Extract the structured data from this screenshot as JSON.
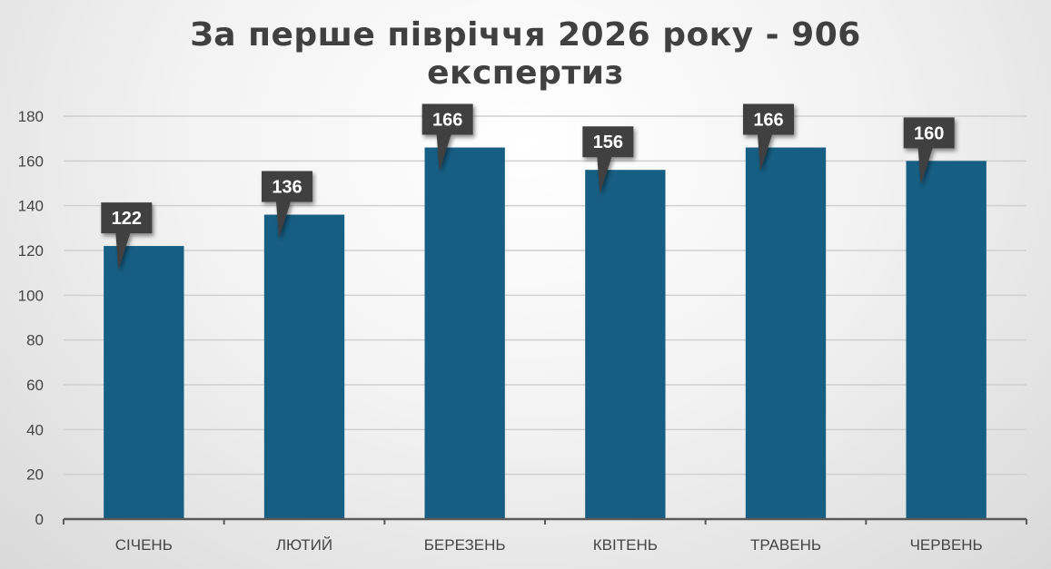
{
  "chart_data": {
    "type": "bar",
    "title": [
      "За перше півріччя 2026 року -  906",
      "експертиз"
    ],
    "categories": [
      "СІЧЕНЬ",
      "ЛЮТИЙ",
      "БЕРЕЗЕНЬ",
      "КВІТЕНЬ",
      "ТРАВЕНЬ",
      "ЧЕРВЕНЬ"
    ],
    "values": [
      122,
      136,
      166,
      156,
      166,
      160
    ],
    "y_ticks": [
      0,
      20,
      40,
      60,
      80,
      100,
      120,
      140,
      160,
      180
    ],
    "ylim": [
      0,
      180
    ],
    "grid": true,
    "legend": "none",
    "colors": {
      "bar": "#165E83",
      "grid": "#d0d0d0",
      "axis": "#595959",
      "label_bg": "#404040",
      "label_text": "#ffffff"
    }
  }
}
